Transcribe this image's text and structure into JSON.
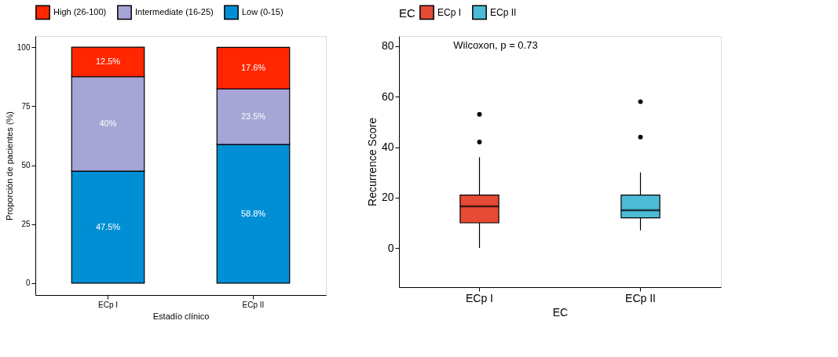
{
  "chart_data": [
    {
      "type": "bar",
      "stacked": true,
      "categories": [
        "ECp I",
        "ECp II"
      ],
      "xlabel": "Estadío clínico",
      "ylabel": "Proporción de pacientes (%)",
      "ylim": [
        -5,
        104.7
      ],
      "yticks": [
        0,
        25,
        50,
        75,
        100
      ],
      "grid": false,
      "legend": "top",
      "series": [
        {
          "name": "Low (0-15)",
          "color": "#008fd5",
          "values": [
            47.5,
            58.8
          ],
          "value_labels": [
            "47.5%",
            "58.8%"
          ]
        },
        {
          "name": "Intermediate (16-25)",
          "color": "#a5a5d6",
          "values": [
            40,
            23.5
          ],
          "value_labels": [
            "40%",
            "23.5%"
          ]
        },
        {
          "name": "High (26-100)",
          "color": "#ff2600",
          "values": [
            12.5,
            17.6
          ],
          "value_labels": [
            "12.5%",
            "17.6%"
          ]
        }
      ]
    },
    {
      "type": "box",
      "categories": [
        "ECp I",
        "ECp II"
      ],
      "xlabel": "EC",
      "ylabel": "Recurrence Score",
      "ylim": [
        -15.5,
        84
      ],
      "yticks": [
        0,
        20,
        40,
        60,
        80
      ],
      "grid": false,
      "legend": "top",
      "legend_title": "EC",
      "series": [
        {
          "name": "ECp I",
          "color": "#e64b35",
          "boxes": [
            {
              "low": 0,
              "q1": 10,
              "median": 16.5,
              "q3": 21,
              "high": 36,
              "outliers": [
                42,
                53
              ]
            },
            null
          ]
        },
        {
          "name": "ECp II",
          "color": "#4dbbd5",
          "boxes": [
            null,
            {
              "low": 7,
              "q1": 12,
              "median": 15,
              "q3": 21,
              "high": 30,
              "outliers": [
                44,
                58
              ]
            }
          ]
        }
      ],
      "annotations": [
        "Wilcoxon, p = 0.73"
      ]
    }
  ]
}
